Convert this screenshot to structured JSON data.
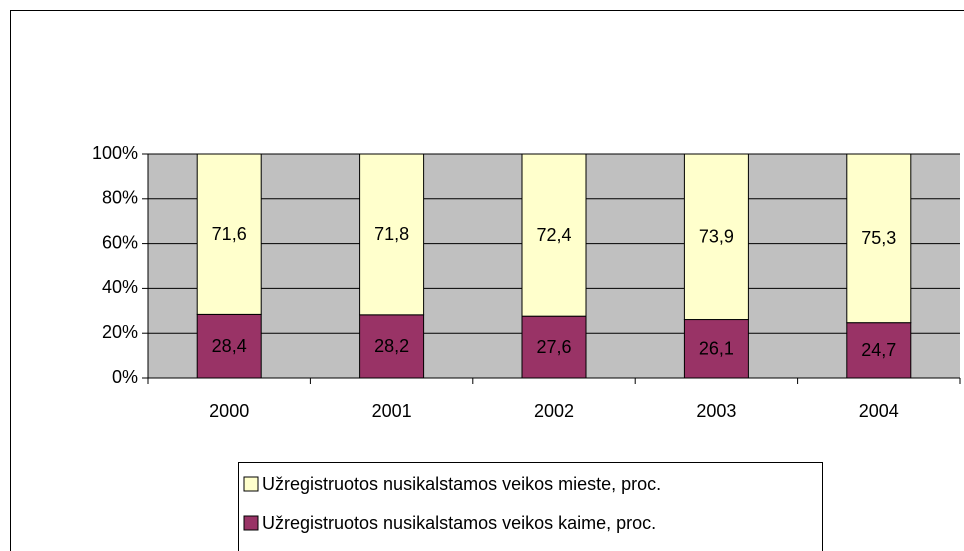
{
  "chart_data": {
    "type": "stacked_bar",
    "categories": [
      "2000",
      "2001",
      "2002",
      "2003",
      "2004"
    ],
    "series": [
      {
        "name": "Užregistruotos nusikalstamos veikos kaime, proc.",
        "color": "#993366",
        "values": [
          28.4,
          28.2,
          27.6,
          26.1,
          24.7
        ],
        "value_labels": [
          "28,4",
          "28,2",
          "27,6",
          "26,1",
          "24,7"
        ]
      },
      {
        "name": "Užregistruotos nusikalstamos veikos mieste, proc.",
        "color": "#ffffcc",
        "values": [
          71.6,
          71.8,
          72.4,
          73.9,
          75.3
        ],
        "value_labels": [
          "71,6",
          "71,8",
          "72,4",
          "73,9",
          "75,3"
        ]
      }
    ],
    "ylim": [
      0,
      100
    ],
    "yticks": [
      {
        "value": 0,
        "label": "0%"
      },
      {
        "value": 20,
        "label": "20%"
      },
      {
        "value": 40,
        "label": "40%"
      },
      {
        "value": 60,
        "label": "60%"
      },
      {
        "value": 80,
        "label": "80%"
      },
      {
        "value": 100,
        "label": "100%"
      }
    ],
    "grid": true,
    "plot_background": "#c0c0c0",
    "legend": "bottom"
  }
}
